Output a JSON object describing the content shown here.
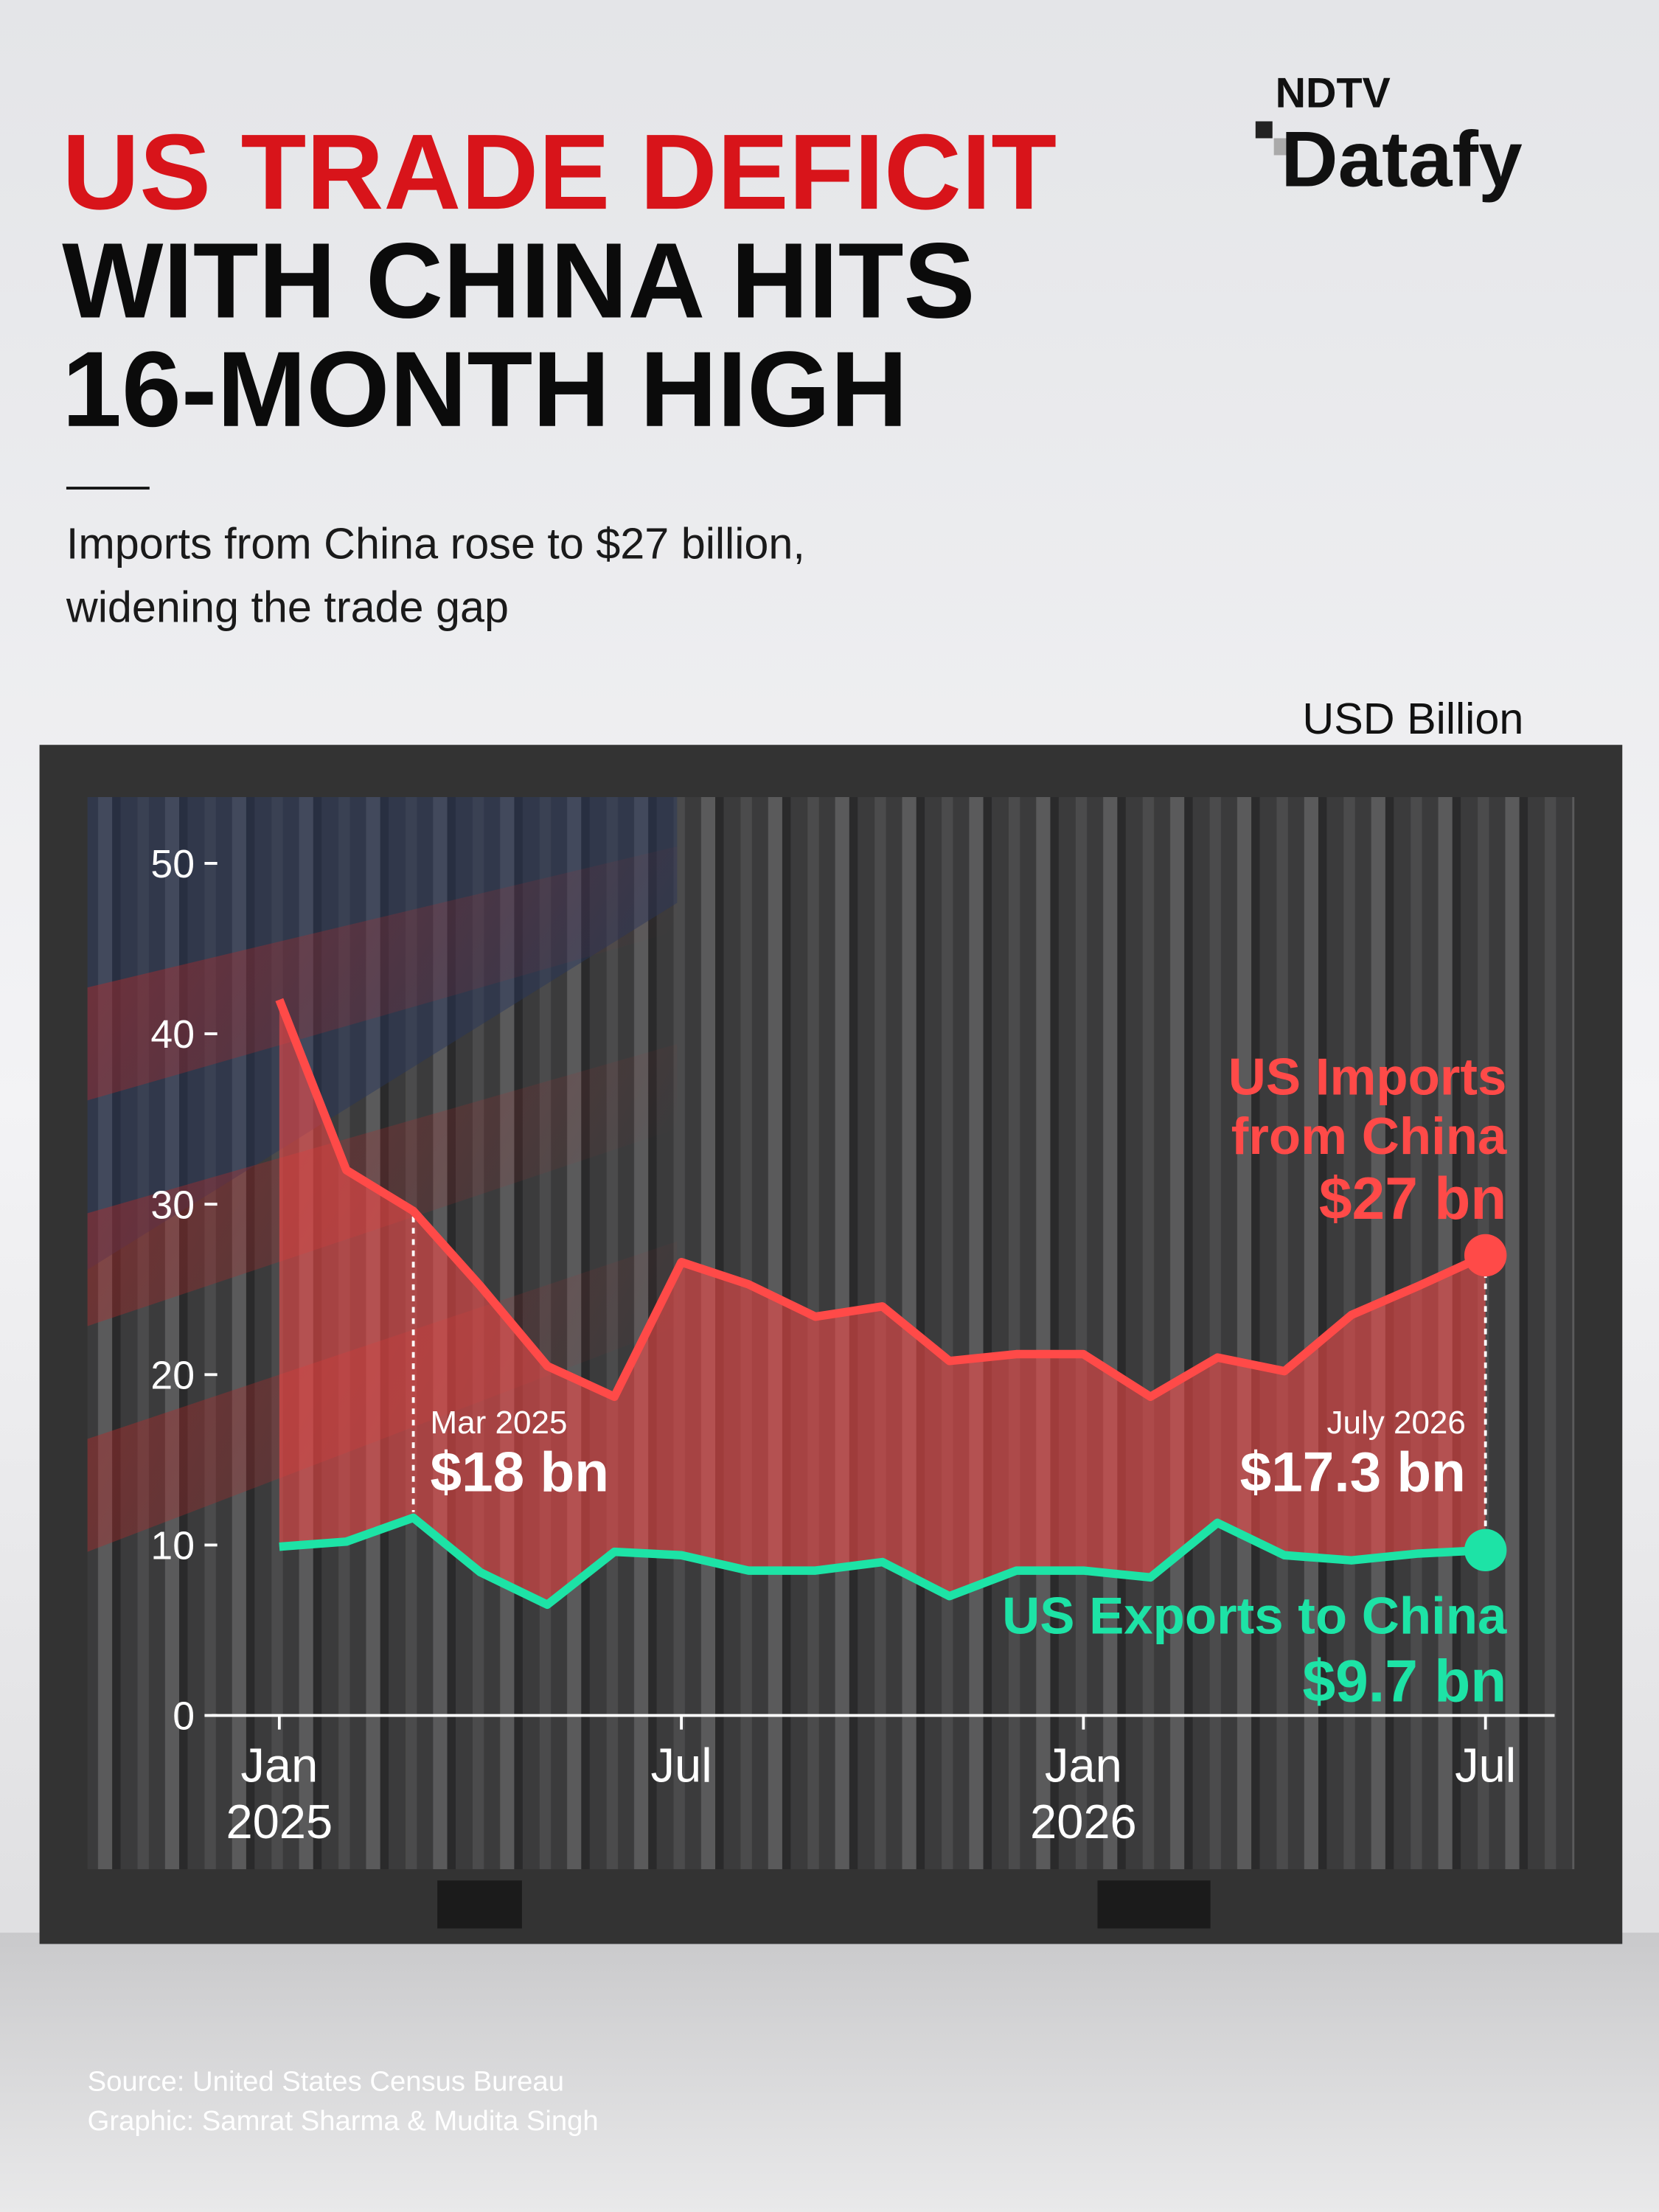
{
  "logo": {
    "top": "NDTV",
    "bottom": "Datafy"
  },
  "chart_data": {
    "type": "line",
    "title_lines": [
      "US TRADE DEFICIT",
      "WITH CHINA HITS",
      "16-MONTH HIGH"
    ],
    "subtitle_lines": [
      "Imports from China rose to $27 billion,",
      "widening the trade gap"
    ],
    "y_label": "USD Billion",
    "categories": [
      "Jan 2025",
      null,
      null,
      null,
      null,
      null,
      "Jul",
      null,
      null,
      null,
      null,
      null,
      "Jan 2026",
      null,
      null,
      null,
      null,
      null,
      "Jul"
    ],
    "series": [
      {
        "name": "US Imports from China",
        "color": "#ff4a48",
        "values": [
          42.0,
          32.0,
          29.6,
          25.2,
          20.5,
          18.7,
          26.6,
          25.3,
          23.4,
          24.0,
          20.8,
          21.2,
          21.2,
          18.7,
          21.0,
          20.2,
          23.5,
          25.2,
          27
        ],
        "value_labels": [
          null,
          null,
          null,
          null,
          null,
          null,
          null,
          null,
          null,
          null,
          null,
          null,
          null,
          null,
          null,
          null,
          null,
          null,
          "$27 bn"
        ]
      },
      {
        "name": "US Exports to China",
        "color": "#1de3a6",
        "values": [
          9.9,
          10.2,
          11.6,
          8.4,
          6.5,
          9.6,
          9.4,
          8.5,
          8.5,
          9.0,
          7.0,
          8.5,
          8.5,
          8.1,
          11.3,
          9.4,
          9.1,
          9.5,
          9.7
        ],
        "value_labels": [
          null,
          null,
          null,
          null,
          null,
          null,
          null,
          null,
          null,
          null,
          null,
          null,
          null,
          null,
          null,
          null,
          null,
          null,
          "$9.7 bn"
        ]
      }
    ],
    "annotations": [
      {
        "label": "Mar 2025",
        "text": "$18 bn"
      },
      {
        "label": "July 2026",
        "text": "$17.3 bn"
      }
    ],
    "ylim": [
      0,
      50
    ],
    "yticks": [
      0,
      10,
      20,
      30,
      40,
      50
    ],
    "source": "Source: United States Census Bureau",
    "credit": "Graphic: Samrat Sharma & Mudita Singh"
  }
}
